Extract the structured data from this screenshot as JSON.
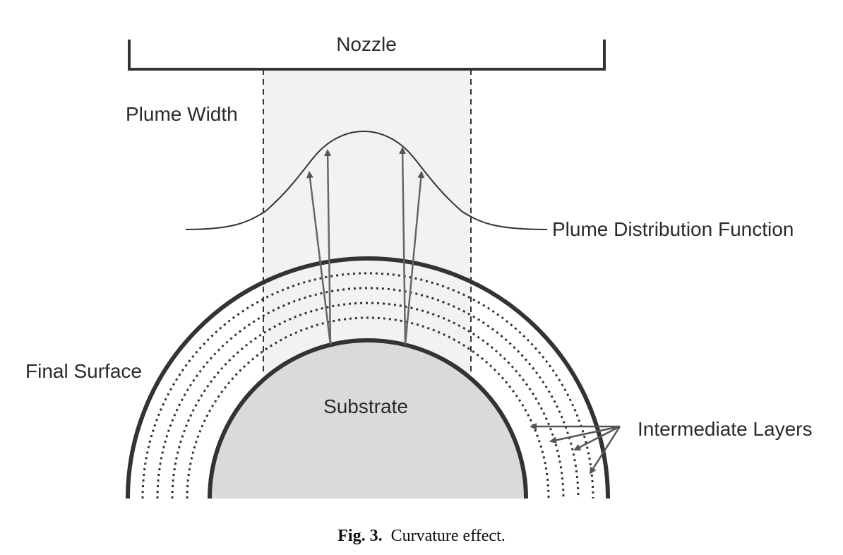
{
  "labels": {
    "nozzle": "Nozzle",
    "plume_width": "Plume Width",
    "plume_distribution_function": "Plume Distribution Function",
    "final_surface": "Final Surface",
    "substrate": "Substrate",
    "intermediate_layers": "Intermediate Layers"
  },
  "caption": {
    "prefix": "Fig. 3.",
    "text": "Curvature effect."
  },
  "colors": {
    "stroke": "#333333",
    "substrate_fill": "#dadada",
    "plume_band_fill": "#f2f2f2"
  }
}
